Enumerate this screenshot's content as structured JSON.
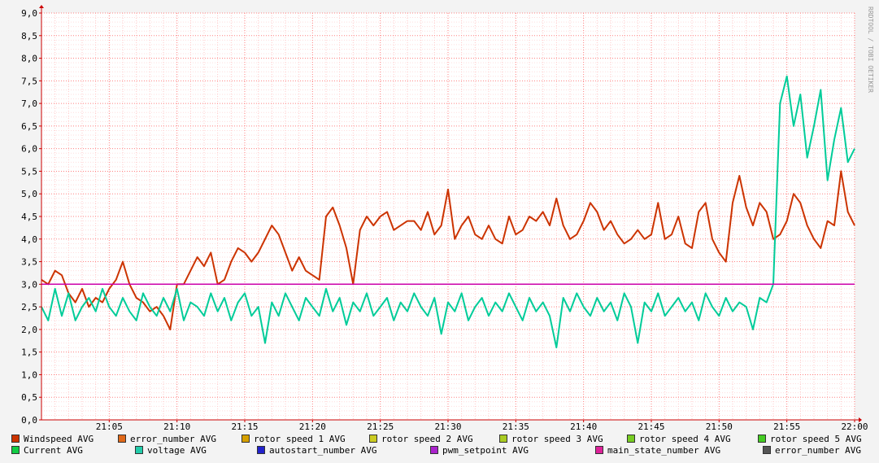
{
  "chart_data": {
    "type": "line",
    "title": "",
    "xlabel": "",
    "ylabel": "",
    "watermark": "RRDTOOL / TOBI OETIKER",
    "ylim": [
      0,
      9
    ],
    "y_ticks": [
      "0,0",
      "0,5",
      "1,0",
      "1,5",
      "2,0",
      "2,5",
      "3,0",
      "3,5",
      "4,0",
      "4,5",
      "5,0",
      "5,5",
      "6,0",
      "6,5",
      "7,0",
      "7,5",
      "8,0",
      "8,5",
      "9,0"
    ],
    "x_range_min": [
      0,
      60
    ],
    "x_ticks": [
      {
        "label": "21:05",
        "min": 5
      },
      {
        "label": "21:10",
        "min": 10
      },
      {
        "label": "21:15",
        "min": 15
      },
      {
        "label": "21:20",
        "min": 20
      },
      {
        "label": "21:25",
        "min": 25
      },
      {
        "label": "21:30",
        "min": 30
      },
      {
        "label": "21:35",
        "min": 35
      },
      {
        "label": "21:40",
        "min": 40
      },
      {
        "label": "21:45",
        "min": 45
      },
      {
        "label": "21:50",
        "min": 50
      },
      {
        "label": "21:55",
        "min": 55
      },
      {
        "label": "22:00",
        "min": 60
      }
    ],
    "grid": true,
    "legend_position": "bottom",
    "series": [
      {
        "name": "Windspeed AVG",
        "color": "#cc3300",
        "points": [
          [
            0,
            3.1
          ],
          [
            0.5,
            3.0
          ],
          [
            1,
            3.3
          ],
          [
            1.5,
            3.2
          ],
          [
            2,
            2.8
          ],
          [
            2.5,
            2.6
          ],
          [
            3,
            2.9
          ],
          [
            3.5,
            2.5
          ],
          [
            4,
            2.7
          ],
          [
            4.5,
            2.6
          ],
          [
            5,
            2.9
          ],
          [
            5.5,
            3.1
          ],
          [
            6,
            3.5
          ],
          [
            6.5,
            3.0
          ],
          [
            7,
            2.7
          ],
          [
            7.5,
            2.6
          ],
          [
            8,
            2.4
          ],
          [
            8.5,
            2.5
          ],
          [
            9,
            2.3
          ],
          [
            9.5,
            2.0
          ],
          [
            10,
            3.0
          ],
          [
            10.5,
            3.0
          ],
          [
            11,
            3.3
          ],
          [
            11.5,
            3.6
          ],
          [
            12,
            3.4
          ],
          [
            12.5,
            3.7
          ],
          [
            13,
            3.0
          ],
          [
            13.5,
            3.1
          ],
          [
            14,
            3.5
          ],
          [
            14.5,
            3.8
          ],
          [
            15,
            3.7
          ],
          [
            15.5,
            3.5
          ],
          [
            16,
            3.7
          ],
          [
            16.5,
            4.0
          ],
          [
            17,
            4.3
          ],
          [
            17.5,
            4.1
          ],
          [
            18,
            3.7
          ],
          [
            18.5,
            3.3
          ],
          [
            19,
            3.6
          ],
          [
            19.5,
            3.3
          ],
          [
            20,
            3.2
          ],
          [
            20.5,
            3.1
          ],
          [
            21,
            4.5
          ],
          [
            21.5,
            4.7
          ],
          [
            22,
            4.3
          ],
          [
            22.5,
            3.8
          ],
          [
            23,
            3.0
          ],
          [
            23.5,
            4.2
          ],
          [
            24,
            4.5
          ],
          [
            24.5,
            4.3
          ],
          [
            25,
            4.5
          ],
          [
            25.5,
            4.6
          ],
          [
            26,
            4.2
          ],
          [
            26.5,
            4.3
          ],
          [
            27,
            4.4
          ],
          [
            27.5,
            4.4
          ],
          [
            28,
            4.2
          ],
          [
            28.5,
            4.6
          ],
          [
            29,
            4.1
          ],
          [
            29.5,
            4.3
          ],
          [
            30,
            5.1
          ],
          [
            30.5,
            4.0
          ],
          [
            31,
            4.3
          ],
          [
            31.5,
            4.5
          ],
          [
            32,
            4.1
          ],
          [
            32.5,
            4.0
          ],
          [
            33,
            4.3
          ],
          [
            33.5,
            4.0
          ],
          [
            34,
            3.9
          ],
          [
            34.5,
            4.5
          ],
          [
            35,
            4.1
          ],
          [
            35.5,
            4.2
          ],
          [
            36,
            4.5
          ],
          [
            36.5,
            4.4
          ],
          [
            37,
            4.6
          ],
          [
            37.5,
            4.3
          ],
          [
            38,
            4.9
          ],
          [
            38.5,
            4.3
          ],
          [
            39,
            4.0
          ],
          [
            39.5,
            4.1
          ],
          [
            40,
            4.4
          ],
          [
            40.5,
            4.8
          ],
          [
            41,
            4.6
          ],
          [
            41.5,
            4.2
          ],
          [
            42,
            4.4
          ],
          [
            42.5,
            4.1
          ],
          [
            43,
            3.9
          ],
          [
            43.5,
            4.0
          ],
          [
            44,
            4.2
          ],
          [
            44.5,
            4.0
          ],
          [
            45,
            4.1
          ],
          [
            45.5,
            4.8
          ],
          [
            46,
            4.0
          ],
          [
            46.5,
            4.1
          ],
          [
            47,
            4.5
          ],
          [
            47.5,
            3.9
          ],
          [
            48,
            3.8
          ],
          [
            48.5,
            4.6
          ],
          [
            49,
            4.8
          ],
          [
            49.5,
            4.0
          ],
          [
            50,
            3.7
          ],
          [
            50.5,
            3.5
          ],
          [
            51,
            4.8
          ],
          [
            51.5,
            5.4
          ],
          [
            52,
            4.7
          ],
          [
            52.5,
            4.3
          ],
          [
            53,
            4.8
          ],
          [
            53.5,
            4.6
          ],
          [
            54,
            4.0
          ],
          [
            54.5,
            4.1
          ],
          [
            55,
            4.4
          ],
          [
            55.5,
            5.0
          ],
          [
            56,
            4.8
          ],
          [
            56.5,
            4.3
          ],
          [
            57,
            4.0
          ],
          [
            57.5,
            3.8
          ],
          [
            58,
            4.4
          ],
          [
            58.5,
            4.3
          ],
          [
            59,
            5.5
          ],
          [
            59.5,
            4.6
          ],
          [
            60,
            4.3
          ]
        ]
      },
      {
        "name": "voltage AVG",
        "color": "#00cc99",
        "points": [
          [
            0,
            2.5
          ],
          [
            0.5,
            2.2
          ],
          [
            1,
            2.9
          ],
          [
            1.5,
            2.3
          ],
          [
            2,
            2.8
          ],
          [
            2.5,
            2.2
          ],
          [
            3,
            2.5
          ],
          [
            3.5,
            2.7
          ],
          [
            4,
            2.4
          ],
          [
            4.5,
            2.9
          ],
          [
            5,
            2.5
          ],
          [
            5.5,
            2.3
          ],
          [
            6,
            2.7
          ],
          [
            6.5,
            2.4
          ],
          [
            7,
            2.2
          ],
          [
            7.5,
            2.8
          ],
          [
            8,
            2.5
          ],
          [
            8.5,
            2.3
          ],
          [
            9,
            2.7
          ],
          [
            9.5,
            2.4
          ],
          [
            10,
            2.9
          ],
          [
            10.5,
            2.2
          ],
          [
            11,
            2.6
          ],
          [
            11.5,
            2.5
          ],
          [
            12,
            2.3
          ],
          [
            12.5,
            2.8
          ],
          [
            13,
            2.4
          ],
          [
            13.5,
            2.7
          ],
          [
            14,
            2.2
          ],
          [
            14.5,
            2.6
          ],
          [
            15,
            2.8
          ],
          [
            15.5,
            2.3
          ],
          [
            16,
            2.5
          ],
          [
            16.5,
            1.7
          ],
          [
            17,
            2.6
          ],
          [
            17.5,
            2.3
          ],
          [
            18,
            2.8
          ],
          [
            18.5,
            2.5
          ],
          [
            19,
            2.2
          ],
          [
            19.5,
            2.7
          ],
          [
            20,
            2.5
          ],
          [
            20.5,
            2.3
          ],
          [
            21,
            2.9
          ],
          [
            21.5,
            2.4
          ],
          [
            22,
            2.7
          ],
          [
            22.5,
            2.1
          ],
          [
            23,
            2.6
          ],
          [
            23.5,
            2.4
          ],
          [
            24,
            2.8
          ],
          [
            24.5,
            2.3
          ],
          [
            25,
            2.5
          ],
          [
            25.5,
            2.7
          ],
          [
            26,
            2.2
          ],
          [
            26.5,
            2.6
          ],
          [
            27,
            2.4
          ],
          [
            27.5,
            2.8
          ],
          [
            28,
            2.5
          ],
          [
            28.5,
            2.3
          ],
          [
            29,
            2.7
          ],
          [
            29.5,
            1.9
          ],
          [
            30,
            2.6
          ],
          [
            30.5,
            2.4
          ],
          [
            31,
            2.8
          ],
          [
            31.5,
            2.2
          ],
          [
            32,
            2.5
          ],
          [
            32.5,
            2.7
          ],
          [
            33,
            2.3
          ],
          [
            33.5,
            2.6
          ],
          [
            34,
            2.4
          ],
          [
            34.5,
            2.8
          ],
          [
            35,
            2.5
          ],
          [
            35.5,
            2.2
          ],
          [
            36,
            2.7
          ],
          [
            36.5,
            2.4
          ],
          [
            37,
            2.6
          ],
          [
            37.5,
            2.3
          ],
          [
            38,
            1.6
          ],
          [
            38.5,
            2.7
          ],
          [
            39,
            2.4
          ],
          [
            39.5,
            2.8
          ],
          [
            40,
            2.5
          ],
          [
            40.5,
            2.3
          ],
          [
            41,
            2.7
          ],
          [
            41.5,
            2.4
          ],
          [
            42,
            2.6
          ],
          [
            42.5,
            2.2
          ],
          [
            43,
            2.8
          ],
          [
            43.5,
            2.5
          ],
          [
            44,
            1.7
          ],
          [
            44.5,
            2.6
          ],
          [
            45,
            2.4
          ],
          [
            45.5,
            2.8
          ],
          [
            46,
            2.3
          ],
          [
            46.5,
            2.5
          ],
          [
            47,
            2.7
          ],
          [
            47.5,
            2.4
          ],
          [
            48,
            2.6
          ],
          [
            48.5,
            2.2
          ],
          [
            49,
            2.8
          ],
          [
            49.5,
            2.5
          ],
          [
            50,
            2.3
          ],
          [
            50.5,
            2.7
          ],
          [
            51,
            2.4
          ],
          [
            51.5,
            2.6
          ],
          [
            52,
            2.5
          ],
          [
            52.5,
            2.0
          ],
          [
            53,
            2.7
          ],
          [
            53.5,
            2.6
          ],
          [
            54,
            3.0
          ],
          [
            54.5,
            7.0
          ],
          [
            55,
            7.6
          ],
          [
            55.5,
            6.5
          ],
          [
            56,
            7.2
          ],
          [
            56.5,
            5.8
          ],
          [
            57,
            6.5
          ],
          [
            57.5,
            7.3
          ],
          [
            58,
            5.3
          ],
          [
            58.5,
            6.2
          ],
          [
            59,
            6.9
          ],
          [
            59.5,
            5.7
          ],
          [
            60,
            6.0
          ]
        ]
      },
      {
        "name": "main_state_number AVG",
        "color": "#cc00aa",
        "points": [
          [
            0,
            3.0
          ],
          [
            60,
            3.0
          ]
        ]
      }
    ],
    "legend": [
      {
        "label": "Windspeed AVG",
        "color": "#cc3300"
      },
      {
        "label": "error_number AVG",
        "color": "#e06818"
      },
      {
        "label": "rotor speed 1 AVG",
        "color": "#d6a000"
      },
      {
        "label": "rotor speed 2 AVG",
        "color": "#cccc22"
      },
      {
        "label": "rotor speed 3 AVG",
        "color": "#aacc22"
      },
      {
        "label": "rotor speed 4 AVG",
        "color": "#77cc22"
      },
      {
        "label": "rotor speed 5 AVG",
        "color": "#44cc22"
      },
      {
        "label": "Current AVG",
        "color": "#11cc44"
      },
      {
        "label": "voltage AVG",
        "color": "#22ccaa"
      },
      {
        "label": "autostart_number AVG",
        "color": "#2222cc"
      },
      {
        "label": "pwm_setpoint AVG",
        "color": "#aa22cc"
      },
      {
        "label": "main_state_number AVG",
        "color": "#dd2299"
      },
      {
        "label": "error_number AVG",
        "color": "#555555"
      }
    ]
  }
}
